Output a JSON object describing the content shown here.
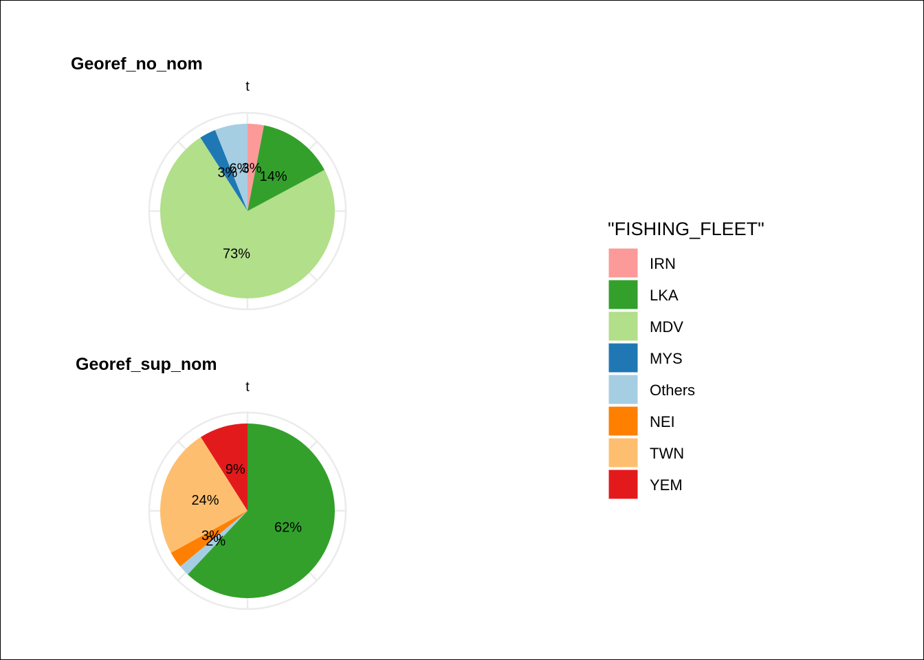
{
  "chart_data": [
    {
      "type": "pie",
      "title": "Georef_no_nom",
      "axis_label": "t",
      "slices": [
        {
          "category": "IRN",
          "value": 3,
          "label": "3%"
        },
        {
          "category": "LKA",
          "value": 14,
          "label": "14%"
        },
        {
          "category": "MDV",
          "value": 73,
          "label": "73%"
        },
        {
          "category": "MYS",
          "value": 3,
          "label": "3%"
        },
        {
          "category": "Others",
          "value": 6,
          "label": "6%"
        }
      ]
    },
    {
      "type": "pie",
      "title": "Georef_sup_nom",
      "axis_label": "t",
      "slices": [
        {
          "category": "LKA",
          "value": 62,
          "label": "62%"
        },
        {
          "category": "Others",
          "value": 2,
          "label": "2%"
        },
        {
          "category": "NEI",
          "value": 3,
          "label": "3%"
        },
        {
          "category": "TWN",
          "value": 24,
          "label": "24%"
        },
        {
          "category": "YEM",
          "value": 9,
          "label": "9%"
        }
      ]
    }
  ],
  "legend": {
    "title": "\"FISHING_FLEET\"",
    "placement": "right",
    "items": [
      {
        "label": "IRN",
        "color": "#fb9a99"
      },
      {
        "label": "LKA",
        "color": "#33a02c"
      },
      {
        "label": "MDV",
        "color": "#b2df8a"
      },
      {
        "label": "MYS",
        "color": "#1f78b4"
      },
      {
        "label": "Others",
        "color": "#a6cee3"
      },
      {
        "label": "NEI",
        "color": "#ff7f00"
      },
      {
        "label": "TWN",
        "color": "#fdbf6f"
      },
      {
        "label": "YEM",
        "color": "#e31a1c"
      }
    ]
  }
}
